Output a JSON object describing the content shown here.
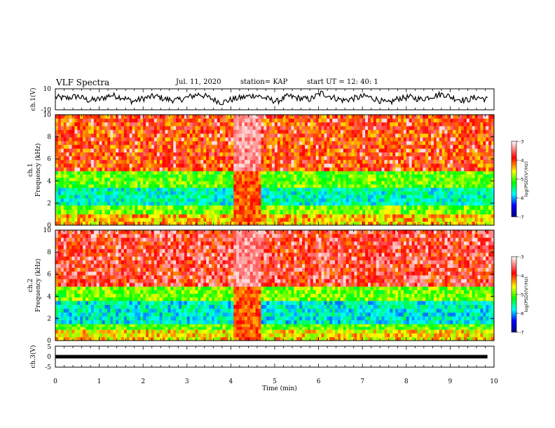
{
  "header": {
    "title": "VLF Spectra",
    "date": "Jul. 11, 2020",
    "station": "station= KAP",
    "start": "start UT = 12: 40: 1"
  },
  "chart_data": [
    {
      "type": "line",
      "panel": "ch1-waveform",
      "ylabel": "ch.1(V)",
      "ylim": [
        -10,
        10
      ],
      "ytick_labels": [
        "10",
        "-10"
      ],
      "x_range_min": [
        0,
        9.85
      ],
      "trend_samples": [
        2,
        1,
        3,
        -1,
        0,
        4,
        2,
        -2,
        1,
        3,
        0,
        -1,
        2,
        5,
        1,
        -3,
        0,
        2,
        4,
        1,
        -2,
        3,
        1,
        0,
        6,
        2,
        -1,
        1,
        3,
        0,
        -4,
        1,
        2,
        0,
        3,
        5,
        1,
        -1,
        2,
        0
      ],
      "color": "#000000"
    },
    {
      "type": "heatmap",
      "panel": "ch1-spectrogram",
      "ylabel_line1": "ch.1",
      "ylabel_line2": "Frequency (kHz)",
      "ylim": [
        0,
        10
      ],
      "ytick_labels": [
        "0",
        "2",
        "4",
        "6",
        "8",
        "10"
      ],
      "colorbar": {
        "label": "log(PSD)(V²/Hz)",
        "range": [
          -7,
          -3
        ],
        "tick_labels": [
          "-3",
          "-4",
          "-5",
          "-6",
          "-7"
        ]
      },
      "bands": [
        {
          "from_khz": 0,
          "to_khz": 1,
          "level": -4.2
        },
        {
          "from_khz": 1,
          "to_khz": 1.8,
          "level": -4.7
        },
        {
          "from_khz": 1.8,
          "to_khz": 3.4,
          "level": -5.5
        },
        {
          "from_khz": 3.4,
          "to_khz": 4.9,
          "level": -4.8
        },
        {
          "from_khz": 4.9,
          "to_khz": 10,
          "level": -3.8
        }
      ],
      "disturbance_min": [
        4.05,
        4.7
      ]
    },
    {
      "type": "heatmap",
      "panel": "ch2-spectrogram",
      "ylabel_line1": "ch.2",
      "ylabel_line2": "Frequency (kHz)",
      "ylim": [
        0,
        10
      ],
      "ytick_labels": [
        "0",
        "2",
        "4",
        "6",
        "8",
        "10"
      ],
      "colorbar": {
        "label": "log(PSD)(V²/Hz)",
        "range": [
          -7,
          -3
        ],
        "tick_labels": [
          "-3",
          "-4",
          "-5",
          "-6",
          "-7"
        ]
      },
      "bands": [
        {
          "from_khz": 0,
          "to_khz": 1,
          "level": -4.3
        },
        {
          "from_khz": 1,
          "to_khz": 1.5,
          "level": -4.8
        },
        {
          "from_khz": 1.5,
          "to_khz": 3.6,
          "level": -5.6
        },
        {
          "from_khz": 3.6,
          "to_khz": 4.9,
          "level": -4.7
        },
        {
          "from_khz": 4.9,
          "to_khz": 10,
          "level": -3.6
        }
      ],
      "disturbance_min": [
        4.05,
        4.7
      ]
    },
    {
      "type": "line",
      "panel": "ch3-waveform",
      "ylabel": "ch.3(V)",
      "ylim": [
        -5,
        5
      ],
      "ytick_labels": [
        "5",
        "0",
        "-5"
      ],
      "level": 0,
      "x_range_min": [
        0,
        9.85
      ],
      "color": "#000000"
    }
  ],
  "xaxis": {
    "label": "Time (min)",
    "range": [
      0,
      10
    ],
    "tick_labels": [
      "0",
      "1",
      "2",
      "3",
      "4",
      "5",
      "6",
      "7",
      "8",
      "9",
      "10"
    ]
  },
  "colors": {
    "spectrum": [
      "#000080",
      "#0000ff",
      "#00ffff",
      "#00ff00",
      "#ffff00",
      "#ff0000",
      "#ffffff"
    ],
    "axis": "#000000"
  }
}
